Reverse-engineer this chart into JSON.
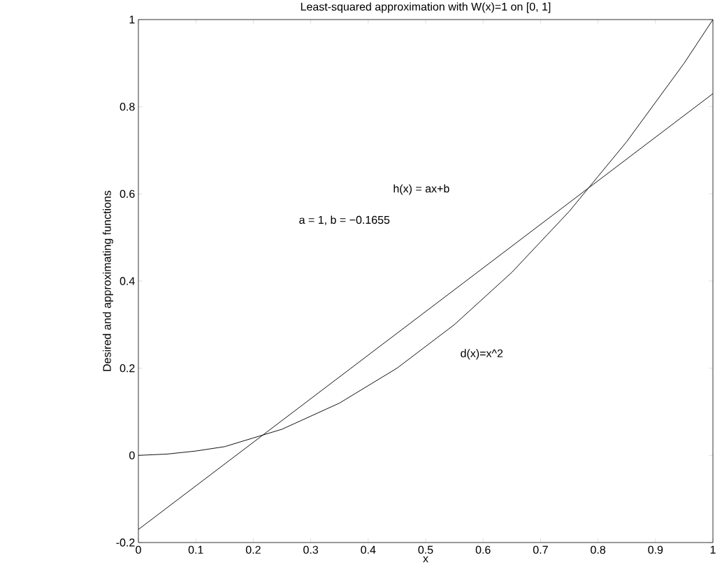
{
  "chart_data": {
    "type": "line",
    "title": "Least-squared approximation with W(x)=1 on [0, 1]",
    "xlabel": "x",
    "ylabel": "Desired and approximating functions",
    "xlim": [
      0,
      1
    ],
    "ylim": [
      -0.2,
      1
    ],
    "xticks": [
      0,
      0.1,
      0.2,
      0.3,
      0.4,
      0.5,
      0.6,
      0.7,
      0.8,
      0.9,
      1
    ],
    "yticks": [
      -0.2,
      0,
      0.2,
      0.4,
      0.6,
      0.8,
      1
    ],
    "series": [
      {
        "color": "#000000",
        "x": [
          0,
          0.05,
          0.1,
          0.15,
          0.2,
          0.25,
          0.3,
          0.35,
          0.4,
          0.45,
          0.5,
          0.55,
          0.6,
          0.65,
          0.7,
          0.75,
          0.8,
          0.85,
          0.9,
          0.95,
          1
        ],
        "values": [
          0,
          0.003,
          0.01,
          0.02,
          0.04,
          0.06,
          0.09,
          0.12,
          0.16,
          0.2,
          0.25,
          0.3,
          0.36,
          0.42,
          0.49,
          0.56,
          0.64,
          0.72,
          0.81,
          0.9,
          1
        ]
      },
      {
        "color": "#000000",
        "x": [
          0,
          1
        ],
        "values": [
          -0.17,
          0.83
        ]
      }
    ],
    "annotations": [
      "h(x) = ax+b",
      "a = 1, b = −0.1655",
      "d(x)=x^2"
    ]
  }
}
